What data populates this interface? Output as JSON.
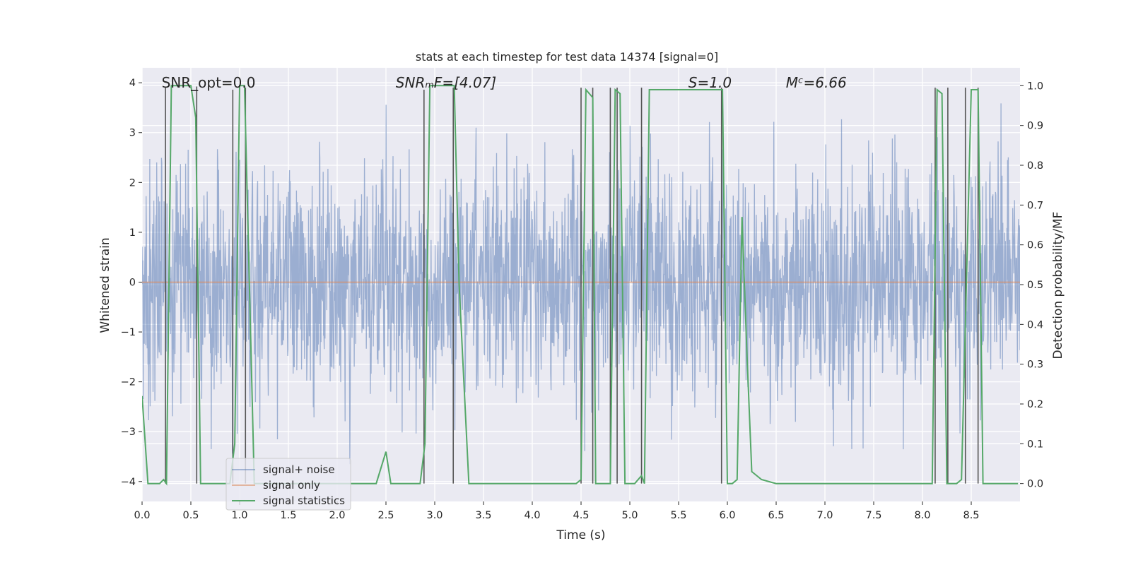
{
  "chart_data": {
    "type": "line",
    "title": "stats at each timestep for test data 14374 [signal=0]",
    "xlabel": "Time (s)",
    "ylabel_left": "Whitened strain",
    "ylabel_right": "Detection probability/MF",
    "xlim": [
      0.0,
      9.0
    ],
    "ylim_left": [
      -4.4,
      4.3
    ],
    "ylim_right": [
      -0.045,
      1.045
    ],
    "x_ticks": [
      0.0,
      0.5,
      1.0,
      1.5,
      2.0,
      2.5,
      3.0,
      3.5,
      4.0,
      4.5,
      5.0,
      5.5,
      6.0,
      6.5,
      7.0,
      7.5,
      8.0,
      8.5
    ],
    "x_tick_labels": [
      "0.0",
      "0.5",
      "1.0",
      "1.5",
      "2.0",
      "2.5",
      "3.0",
      "3.5",
      "4.0",
      "4.5",
      "5.0",
      "5.5",
      "6.0",
      "6.5",
      "7.0",
      "7.5",
      "8.0",
      "8.5"
    ],
    "y_left_ticks": [
      4,
      3,
      2,
      1,
      0,
      -1,
      -2,
      -3,
      -4
    ],
    "y_left_tick_labels": [
      "4",
      "3",
      "2",
      "1",
      "0",
      "−1",
      "−2",
      "−3",
      "−4"
    ],
    "y_right_ticks": [
      1.0,
      0.9,
      0.8,
      0.7,
      0.6,
      0.5,
      0.4,
      0.3,
      0.2,
      0.1,
      0.0
    ],
    "y_right_tick_labels": [
      "1.0",
      "0.9",
      "0.8",
      "0.7",
      "0.6",
      "0.5",
      "0.4",
      "0.3",
      "0.2",
      "0.1",
      "0.0"
    ],
    "grid": true,
    "legend_position": "lower-left",
    "annotations": [
      {
        "id": "snr-opt",
        "text": "SNR_opt=0.0",
        "x": 0.2,
        "y": 4.0
      },
      {
        "id": "snr-mf",
        "text": "SNRₘF=[4.07]",
        "x": 2.6,
        "y": 4.0
      },
      {
        "id": "s-value",
        "text": "S=1.0",
        "x": 5.6,
        "y": 4.0
      },
      {
        "id": "mc-value",
        "text": "Mᶜ=6.66",
        "x": 6.6,
        "y": 4.0
      }
    ],
    "series": [
      {
        "name": "signal+ noise",
        "color": "#4c72b0",
        "axis": "left",
        "description": "whitened noise, roughly gaussian, amplitude about ±2.5 with peaks near ±4"
      },
      {
        "name": "signal only",
        "color": "#dd8452",
        "axis": "left",
        "x": [
          0.0,
          9.0
        ],
        "y": [
          0.0,
          0.0
        ]
      },
      {
        "name": "signal statistics",
        "color": "#55a868",
        "axis": "right",
        "x": [
          0.0,
          0.06,
          0.18,
          0.22,
          0.25,
          0.3,
          0.33,
          0.5,
          0.55,
          0.6,
          0.9,
          0.95,
          1.0,
          1.05,
          1.15,
          1.3,
          2.4,
          2.5,
          2.55,
          2.85,
          2.9,
          2.95,
          3.0,
          3.2,
          3.25,
          3.35,
          4.2,
          4.45,
          4.5,
          4.55,
          4.62,
          4.65,
          4.75,
          4.8,
          4.85,
          4.9,
          4.95,
          5.05,
          5.12,
          5.15,
          5.2,
          5.95,
          6.0,
          6.05,
          6.1,
          6.15,
          6.2,
          6.25,
          6.35,
          6.5,
          8.1,
          8.15,
          8.2,
          8.25,
          8.3,
          8.35,
          8.4,
          8.5,
          8.57,
          8.62,
          8.7,
          8.98
        ],
        "y": [
          0.22,
          0.0,
          0.0,
          0.01,
          0.0,
          1.0,
          1.0,
          1.0,
          0.92,
          0.0,
          0.0,
          0.1,
          1.0,
          1.0,
          0.0,
          0.0,
          0.0,
          0.08,
          0.0,
          0.0,
          0.1,
          1.0,
          1.0,
          1.0,
          0.5,
          0.0,
          0.0,
          0.0,
          0.01,
          0.99,
          0.97,
          0.0,
          0.0,
          0.0,
          0.99,
          0.98,
          0.0,
          0.0,
          0.02,
          0.0,
          0.99,
          0.99,
          0.0,
          0.0,
          0.01,
          0.67,
          0.33,
          0.03,
          0.01,
          0.0,
          0.0,
          0.99,
          0.98,
          0.0,
          0.0,
          0.0,
          0.01,
          0.99,
          0.99,
          0.0,
          0.0,
          0.0
        ]
      }
    ],
    "vertical_markers": [
      {
        "x": 0.24,
        "y_top": 0.995
      },
      {
        "x": 0.56,
        "y_top": 0.998
      },
      {
        "x": 0.93,
        "y_top": 0.99
      },
      {
        "x": 1.06,
        "y_top": 0.995
      },
      {
        "x": 2.89,
        "y_top": 0.99
      },
      {
        "x": 3.19,
        "y_top": 0.995
      },
      {
        "x": 4.5,
        "y_top": 0.995
      },
      {
        "x": 4.62,
        "y_top": 0.995
      },
      {
        "x": 4.8,
        "y_top": 0.995
      },
      {
        "x": 4.87,
        "y_top": 0.995
      },
      {
        "x": 5.12,
        "y_top": 0.995
      },
      {
        "x": 5.94,
        "y_top": 0.995
      },
      {
        "x": 8.13,
        "y_top": 0.995
      },
      {
        "x": 8.26,
        "y_top": 0.995
      },
      {
        "x": 8.44,
        "y_top": 0.995
      },
      {
        "x": 8.57,
        "y_top": 0.995
      }
    ],
    "marker_color": "#555555"
  }
}
